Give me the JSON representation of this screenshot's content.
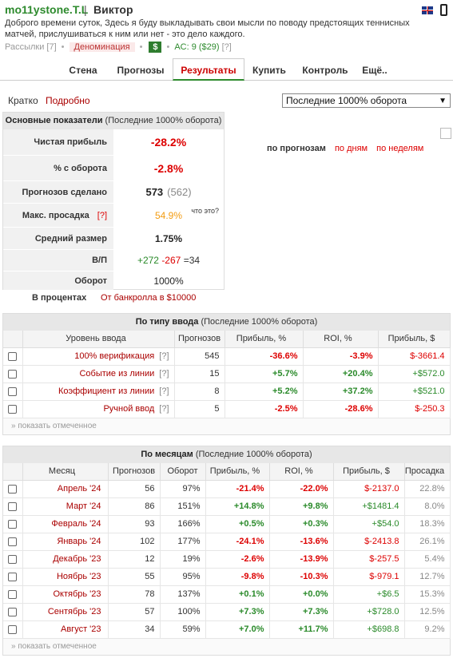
{
  "header": {
    "username": "mo11ystone.T.L",
    "separator": "|",
    "realname": "Виктор",
    "bio": "Доброго времени суток, Здесь я буду выкладывать свои мысли по поводу предстоящих теннисных матчей, прислушиваться к ним или нет - это дело каждого.",
    "mailings": "Рассылки [7]",
    "denomination": "Деноминация",
    "dollar": "$",
    "ac": "AC: 9 ($29)",
    "ac_help": "[?]"
  },
  "tabs": [
    "Стена",
    "Прогнозы",
    "Результаты",
    "Купить",
    "Контроль",
    "Ещё.."
  ],
  "active_tab": "Результаты",
  "view": {
    "short": "Кратко",
    "detailed": "Подробно"
  },
  "period_select": {
    "value": "Последние 1000% оборота"
  },
  "main_stats": {
    "title": "Основные показатели",
    "subtitle": "(Последние 1000% оборота)",
    "rows": {
      "net_profit": {
        "label": "Чистая прибыль",
        "value": "-28.2%"
      },
      "turnover_pct": {
        "label": "% с оборота",
        "value": "-2.8%"
      },
      "predictions": {
        "label": "Прогнозов сделано",
        "value": "573",
        "extra": "(562)"
      },
      "drawdown": {
        "label": "Макс. просадка",
        "help": "[?]",
        "value": "54.9%",
        "what": "что это?"
      },
      "avg_size": {
        "label": "Средний размер",
        "value": "1.75%"
      },
      "wl": {
        "label": "В/П",
        "wins": "+272",
        "losses": "-267",
        "eq": "=34"
      },
      "turnover": {
        "label": "Оборот",
        "value": "1000%"
      }
    },
    "in_percent": "В процентах",
    "from_bankroll": "От банкролла в $10000"
  },
  "chart_links": {
    "by_predictions": "по прогнозам",
    "by_days": "по дням",
    "by_weeks": "по неделям"
  },
  "by_type": {
    "title": "По типу ввода",
    "subtitle": "(Последние 1000% оборота)",
    "columns": [
      "Уровень ввода",
      "Прогнозов",
      "Прибыль, %",
      "ROI, %",
      "Прибыль, $"
    ],
    "rows": [
      {
        "level": "100% верификация",
        "help": "[?]",
        "count": "545",
        "profit_pct": "-36.6%",
        "roi": "-3.9%",
        "profit_usd": "$-3661.4"
      },
      {
        "level": "Событие из линии",
        "help": "[?]",
        "count": "15",
        "profit_pct": "+5.7%",
        "roi": "+20.4%",
        "profit_usd": "+$572.0"
      },
      {
        "level": "Коэффициент из линии",
        "help": "[?]",
        "count": "8",
        "profit_pct": "+5.2%",
        "roi": "+37.2%",
        "profit_usd": "+$521.0"
      },
      {
        "level": "Ручной ввод",
        "help": "[?]",
        "count": "5",
        "profit_pct": "-2.5%",
        "roi": "-28.6%",
        "profit_usd": "$-250.3"
      }
    ],
    "footer": "» показать отмеченное"
  },
  "by_month": {
    "title": "По месяцам",
    "subtitle": "(Последние 1000% оборота)",
    "columns": [
      "Месяц",
      "Прогнозов",
      "Оборот",
      "Прибыль, %",
      "ROI, %",
      "Прибыль, $",
      "Просадка"
    ],
    "rows": [
      {
        "month": "Апрель '24",
        "count": "56",
        "turnover": "97%",
        "profit_pct": "-21.4%",
        "roi": "-22.0%",
        "profit_usd": "$-2137.0",
        "drawdown": "22.8%"
      },
      {
        "month": "Март '24",
        "count": "86",
        "turnover": "151%",
        "profit_pct": "+14.8%",
        "roi": "+9.8%",
        "profit_usd": "+$1481.4",
        "drawdown": "8.0%"
      },
      {
        "month": "Февраль '24",
        "count": "93",
        "turnover": "166%",
        "profit_pct": "+0.5%",
        "roi": "+0.3%",
        "profit_usd": "+$54.0",
        "drawdown": "18.3%"
      },
      {
        "month": "Январь '24",
        "count": "102",
        "turnover": "177%",
        "profit_pct": "-24.1%",
        "roi": "-13.6%",
        "profit_usd": "$-2413.8",
        "drawdown": "26.1%"
      },
      {
        "month": "Декабрь '23",
        "count": "12",
        "turnover": "19%",
        "profit_pct": "-2.6%",
        "roi": "-13.9%",
        "profit_usd": "$-257.5",
        "drawdown": "5.4%"
      },
      {
        "month": "Ноябрь '23",
        "count": "55",
        "turnover": "95%",
        "profit_pct": "-9.8%",
        "roi": "-10.3%",
        "profit_usd": "$-979.1",
        "drawdown": "12.7%"
      },
      {
        "month": "Октябрь '23",
        "count": "78",
        "turnover": "137%",
        "profit_pct": "+0.1%",
        "roi": "+0.0%",
        "profit_usd": "+$6.5",
        "drawdown": "15.3%"
      },
      {
        "month": "Сентябрь '23",
        "count": "57",
        "turnover": "100%",
        "profit_pct": "+7.3%",
        "roi": "+7.3%",
        "profit_usd": "+$728.0",
        "drawdown": "12.5%"
      },
      {
        "month": "Август '23",
        "count": "34",
        "turnover": "59%",
        "profit_pct": "+7.0%",
        "roi": "+11.7%",
        "profit_usd": "+$698.8",
        "drawdown": "9.2%"
      }
    ],
    "footer": "» показать отмеченное"
  },
  "colors": {
    "brand_green": "#2e8b2e",
    "negative": "#d00",
    "positive": "#2a8a2a",
    "warning": "#f39c12"
  },
  "icons": [
    "uk-flag-icon",
    "mobile-phone-icon",
    "dollar-badge-icon",
    "broken-image-icon",
    "checkbox"
  ]
}
